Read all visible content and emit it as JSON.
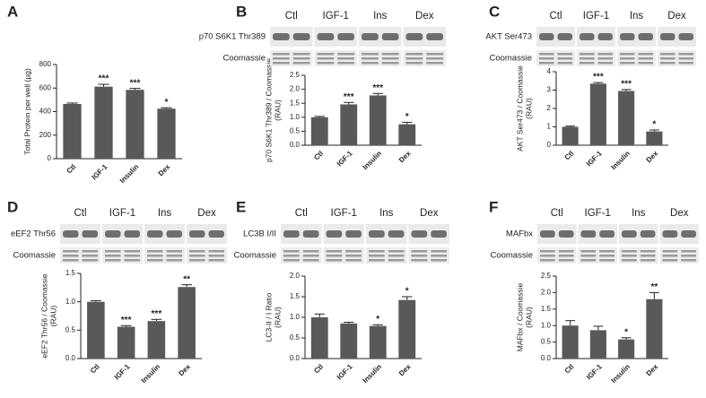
{
  "chart_data": [
    {
      "type": "bar",
      "panel": "A",
      "ylabel": [
        "Total Protein per well (µg)"
      ],
      "categories": [
        "Ctl",
        "IGF-1",
        "Insulin",
        "Dex"
      ],
      "values": [
        465,
        612,
        585,
        425
      ],
      "errors": [
        8,
        20,
        12,
        8
      ],
      "annotations": [
        null,
        "***",
        "***",
        "*"
      ],
      "color": "#595959",
      "ylim": [
        0,
        800
      ],
      "yticks": [
        0,
        200,
        400,
        600,
        800
      ]
    },
    {
      "type": "bar",
      "panel": "B",
      "ylabel": [
        "p70 S6K1 Thr389 / Coomassie",
        "(RAU)"
      ],
      "blot": {
        "lanes": [
          "Ctl",
          "IGF-1",
          "Ins",
          "Dex"
        ],
        "rows": [
          "p70 S6K1 Thr389",
          "Coomassie"
        ]
      },
      "categories": [
        "Ctl",
        "IGF-1",
        "Insulin",
        "Dex"
      ],
      "values": [
        1.0,
        1.46,
        1.78,
        0.75
      ],
      "errors": [
        0.03,
        0.07,
        0.07,
        0.07
      ],
      "annotations": [
        null,
        "***",
        "***",
        "*"
      ],
      "color": "#595959",
      "ylim": [
        0,
        2.5
      ],
      "yticks": [
        {
          "value": 0,
          "label": "0.0"
        },
        0.5,
        {
          "value": 1,
          "label": "1.0"
        },
        1.5,
        {
          "value": 2,
          "label": "2.0"
        },
        2.5
      ]
    },
    {
      "type": "bar",
      "panel": "C",
      "ylabel": [
        "AKT Ser473 / Coomassie",
        "(RAU)"
      ],
      "blot": {
        "lanes": [
          "Ctl",
          "IGF-1",
          "Ins",
          "Dex"
        ],
        "rows": [
          "AKT Ser473",
          "Coomassie"
        ]
      },
      "categories": [
        "Ctl",
        "IGF-1",
        "Insulin",
        "Dex"
      ],
      "values": [
        1.0,
        3.35,
        2.95,
        0.75
      ],
      "errors": [
        0.04,
        0.06,
        0.08,
        0.08
      ],
      "annotations": [
        null,
        "***",
        "***",
        "*"
      ],
      "color": "#595959",
      "ylim": [
        0,
        4
      ],
      "yticks": [
        0,
        1,
        2,
        3,
        4
      ]
    },
    {
      "type": "bar",
      "panel": "D",
      "ylabel": [
        "eEF2 Thr56 / Coomassie",
        "(RAU)"
      ],
      "blot": {
        "lanes": [
          "Ctl",
          "IGF-1",
          "Ins",
          "Dex"
        ],
        "rows": [
          "eEF2 Thr56",
          "Coomassie"
        ]
      },
      "categories": [
        "Ctl",
        "IGF-1",
        "Insulin",
        "Dex"
      ],
      "values": [
        1.0,
        0.56,
        0.66,
        1.26
      ],
      "errors": [
        0.02,
        0.02,
        0.03,
        0.04
      ],
      "annotations": [
        null,
        "***",
        "***",
        "**"
      ],
      "color": "#595959",
      "ylim": [
        0,
        1.5
      ],
      "yticks": [
        {
          "value": 0,
          "label": "0.0"
        },
        0.5,
        {
          "value": 1,
          "label": "1.0"
        },
        1.5
      ]
    },
    {
      "type": "bar",
      "panel": "E",
      "ylabel": [
        "LC3-II / I Ratio",
        "(RAU)"
      ],
      "blot": {
        "lanes": [
          "Ctl",
          "IGF-1",
          "Ins",
          "Dex"
        ],
        "rows": [
          "LC3B I/II",
          "Coomassie"
        ]
      },
      "categories": [
        "Ctl",
        "IGF-1",
        "Insulin",
        "Dex"
      ],
      "values": [
        1.0,
        0.85,
        0.79,
        1.42
      ],
      "errors": [
        0.08,
        0.03,
        0.03,
        0.08
      ],
      "annotations": [
        null,
        null,
        "*",
        "*"
      ],
      "color": "#595959",
      "ylim": [
        0,
        2.0
      ],
      "yticks": [
        {
          "value": 0,
          "label": "0.0"
        },
        0.5,
        {
          "value": 1,
          "label": "1.0"
        },
        1.5,
        {
          "value": 2,
          "label": "2.0"
        }
      ]
    },
    {
      "type": "bar",
      "panel": "F",
      "ylabel": [
        "MAFbx / Coomassie",
        "(RAU)"
      ],
      "blot": {
        "lanes": [
          "Ctl",
          "IGF-1",
          "Ins",
          "Dex"
        ],
        "rows": [
          "MAFbx",
          "Coomassie"
        ]
      },
      "categories": [
        "Ctl",
        "IGF-1",
        "Insulin",
        "Dex"
      ],
      "values": [
        1.0,
        0.86,
        0.58,
        1.8
      ],
      "errors": [
        0.15,
        0.12,
        0.05,
        0.2
      ],
      "annotations": [
        null,
        null,
        "*",
        "**"
      ],
      "color": "#595959",
      "ylim": [
        0,
        2.5
      ],
      "yticks": [
        {
          "value": 0,
          "label": "0.0"
        },
        0.5,
        {
          "value": 1,
          "label": "1.0"
        },
        1.5,
        {
          "value": 2,
          "label": "2.0"
        },
        2.5
      ]
    }
  ]
}
